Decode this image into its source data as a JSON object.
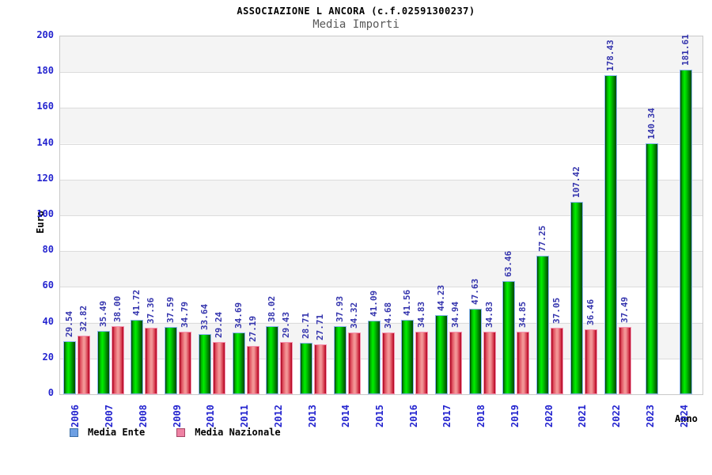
{
  "header": {
    "title": "ASSOCIAZIONE L ANCORA (c.f.02591300237)",
    "subtitle": "Media Importi"
  },
  "axes": {
    "y_title": "Euro",
    "x_title": "Anno"
  },
  "legend": {
    "items": [
      {
        "label": "Media Ente",
        "swatch": {
          "fill": "#6d9fe3",
          "border": "#3c6ea5"
        }
      },
      {
        "label": "Media Nazionale",
        "swatch": {
          "fill": "#ee82a3",
          "border": "#a54667"
        }
      }
    ]
  },
  "colors": {
    "bar_green_main": "#00cc00",
    "bar_red_main": "#e84b5a",
    "bar_green_border": "#8ab6f0",
    "bar_red_border": "#f493b0",
    "axis_label_blue": "#2424cf",
    "value_label_blue": "#3434ad",
    "band_gray": "#f4f4f4",
    "gridline": "#dcdcdc"
  },
  "chart_data": {
    "type": "bar",
    "title": "ASSOCIAZIONE L ANCORA (c.f.02591300237)",
    "subtitle": "Media Importi",
    "xlabel": "Anno",
    "ylabel": "Euro",
    "ylim": [
      0,
      200
    ],
    "yticks": [
      0,
      20,
      40,
      60,
      80,
      100,
      120,
      140,
      160,
      180,
      200
    ],
    "grid": true,
    "legend_position": "bottom-left",
    "categories": [
      "2006",
      "2007",
      "2008",
      "2009",
      "2010",
      "2011",
      "2012",
      "2013",
      "2014",
      "2015",
      "2016",
      "2017",
      "2018",
      "2019",
      "2020",
      "2021",
      "2022",
      "2023",
      "2024"
    ],
    "series": [
      {
        "name": "Media Ente",
        "values": [
          29.54,
          35.49,
          41.72,
          37.59,
          33.64,
          34.69,
          38.02,
          28.71,
          37.93,
          41.09,
          41.56,
          44.23,
          47.63,
          63.46,
          77.25,
          107.42,
          178.43,
          140.34,
          181.61
        ]
      },
      {
        "name": "Media Nazionale",
        "values": [
          32.82,
          38.0,
          37.36,
          34.79,
          29.24,
          27.19,
          29.43,
          27.71,
          34.32,
          34.68,
          34.83,
          34.94,
          34.83,
          34.85,
          37.05,
          36.46,
          37.49,
          null,
          null
        ]
      }
    ]
  }
}
